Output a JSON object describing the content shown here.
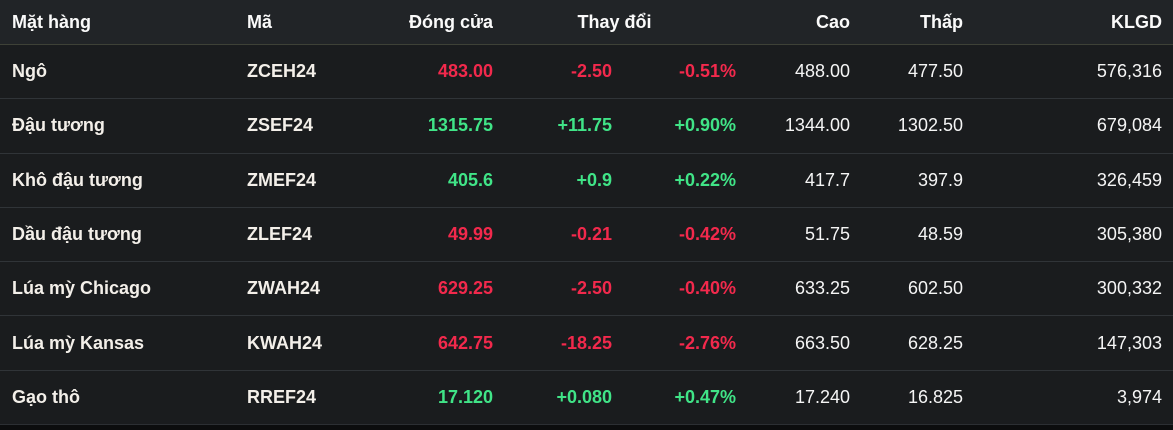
{
  "colors": {
    "up": "#40e487",
    "down": "#f2294c",
    "header_bg": "#212427",
    "row_bg": "#1a1c1e"
  },
  "table": {
    "columns": {
      "item": "Mặt hàng",
      "code": "Mã",
      "close": "Đóng cửa",
      "change": "Thay đổi",
      "high": "Cao",
      "low": "Thấp",
      "volume": "KLGD"
    },
    "rows": [
      {
        "name": "Ngô",
        "code": "ZCEH24",
        "close": "483.00",
        "change": "-2.50",
        "change_pct": "-0.51%",
        "high": "488.00",
        "low": "477.50",
        "volume": "576,316",
        "direction": "down"
      },
      {
        "name": "Đậu tương",
        "code": "ZSEF24",
        "close": "1315.75",
        "change": "+11.75",
        "change_pct": "+0.90%",
        "high": "1344.00",
        "low": "1302.50",
        "volume": "679,084",
        "direction": "up"
      },
      {
        "name": "Khô đậu tương",
        "code": "ZMEF24",
        "close": "405.6",
        "change": "+0.9",
        "change_pct": "+0.22%",
        "high": "417.7",
        "low": "397.9",
        "volume": "326,459",
        "direction": "up"
      },
      {
        "name": "Dầu đậu tương",
        "code": "ZLEF24",
        "close": "49.99",
        "change": "-0.21",
        "change_pct": "-0.42%",
        "high": "51.75",
        "low": "48.59",
        "volume": "305,380",
        "direction": "down"
      },
      {
        "name": "Lúa mỳ Chicago",
        "code": "ZWAH24",
        "close": "629.25",
        "change": "-2.50",
        "change_pct": "-0.40%",
        "high": "633.25",
        "low": "602.50",
        "volume": "300,332",
        "direction": "down"
      },
      {
        "name": "Lúa mỳ Kansas",
        "code": "KWAH24",
        "close": "642.75",
        "change": "-18.25",
        "change_pct": "-2.76%",
        "high": "663.50",
        "low": "628.25",
        "volume": "147,303",
        "direction": "down"
      },
      {
        "name": "Gạo thô",
        "code": "RREF24",
        "close": "17.120",
        "change": "+0.080",
        "change_pct": "+0.47%",
        "high": "17.240",
        "low": "16.825",
        "volume": "3,974",
        "direction": "up"
      }
    ]
  }
}
